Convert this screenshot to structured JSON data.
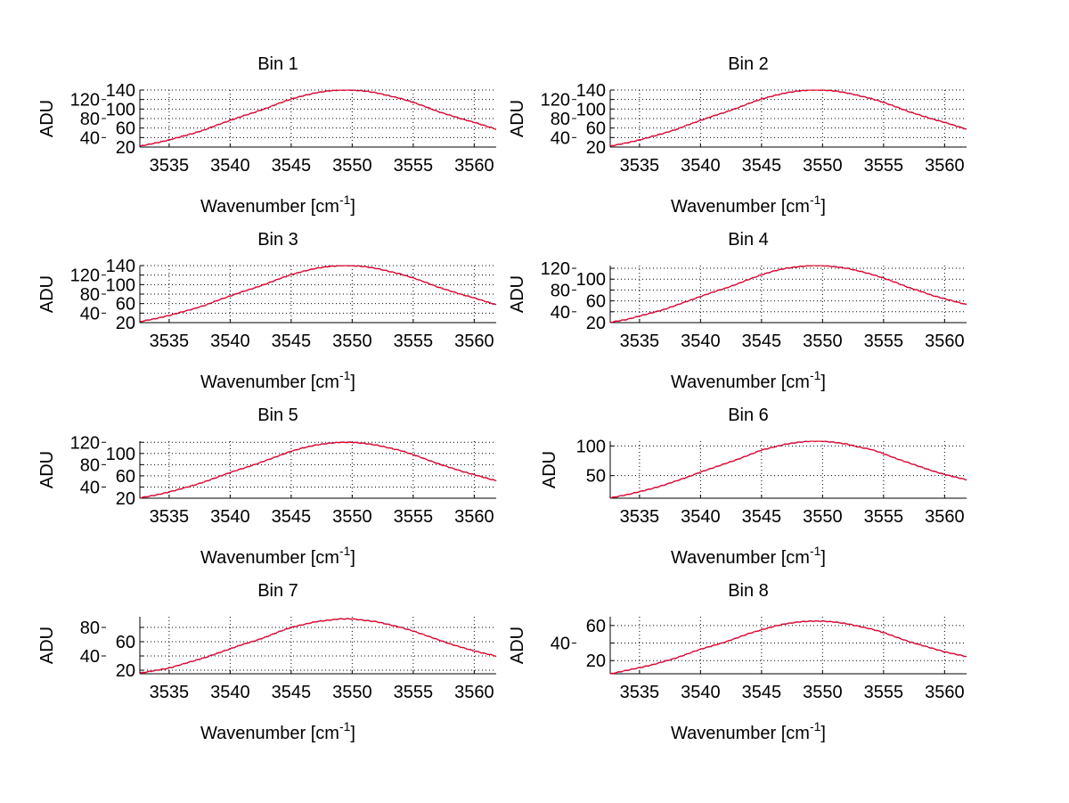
{
  "chart_data": [
    {
      "type": "line",
      "title": "Bin 1",
      "xlabel": "Wavenumber [cm",
      "xlabel_sup": "-1",
      "xlabel_end": "]",
      "ylabel": "ADU",
      "xlim": [
        3532.6,
        3561.8
      ],
      "ylim": [
        20,
        140
      ],
      "xticks": [
        3535,
        3540,
        3545,
        3550,
        3555,
        3560
      ],
      "yticks": [
        20,
        40,
        60,
        80,
        100,
        120,
        140
      ],
      "grid": true,
      "x": [
        3533,
        3534,
        3535,
        3536,
        3537,
        3538,
        3539,
        3540,
        3541,
        3542,
        3543,
        3544,
        3545,
        3546,
        3547,
        3548,
        3549,
        3550,
        3551,
        3552,
        3553,
        3554,
        3555,
        3556,
        3557,
        3558,
        3559,
        3560,
        3561
      ],
      "series": [
        {
          "name": "blue",
          "color": "#0000ff",
          "values": [
            24,
            29,
            35,
            42,
            49,
            57,
            67,
            76,
            85,
            93,
            102,
            112,
            121,
            128,
            134,
            138,
            140,
            140,
            138,
            134,
            128,
            122,
            114,
            105,
            95,
            87,
            79,
            72,
            64
          ]
        },
        {
          "name": "red",
          "color": "#ff0000",
          "values": [
            24,
            29,
            35,
            42,
            49,
            57,
            67,
            76,
            85,
            93,
            102,
            112,
            121,
            128,
            134,
            138,
            140,
            140,
            138,
            134,
            128,
            122,
            114,
            105,
            95,
            87,
            79,
            72,
            64
          ]
        }
      ]
    },
    {
      "type": "line",
      "title": "Bin 2",
      "xlabel": "Wavenumber [cm",
      "xlabel_sup": "-1",
      "xlabel_end": "]",
      "ylabel": "ADU",
      "xlim": [
        3532.6,
        3561.8
      ],
      "ylim": [
        20,
        140
      ],
      "xticks": [
        3535,
        3540,
        3545,
        3550,
        3555,
        3560
      ],
      "yticks": [
        20,
        40,
        60,
        80,
        100,
        120,
        140
      ],
      "grid": true,
      "x": [
        3533,
        3534,
        3535,
        3536,
        3537,
        3538,
        3539,
        3540,
        3541,
        3542,
        3543,
        3544,
        3545,
        3546,
        3547,
        3548,
        3549,
        3550,
        3551,
        3552,
        3553,
        3554,
        3555,
        3556,
        3557,
        3558,
        3559,
        3560,
        3561
      ],
      "series": [
        {
          "name": "blue",
          "color": "#0000ff",
          "values": [
            24,
            29,
            35,
            42,
            49,
            57,
            67,
            76,
            85,
            93,
            102,
            112,
            121,
            128,
            134,
            138,
            140,
            140,
            138,
            134,
            128,
            122,
            114,
            105,
            95,
            87,
            79,
            72,
            64
          ]
        },
        {
          "name": "red",
          "color": "#ff0000",
          "values": [
            24,
            29,
            35,
            42,
            49,
            57,
            67,
            76,
            85,
            93,
            102,
            112,
            121,
            128,
            134,
            138,
            140,
            140,
            138,
            134,
            128,
            122,
            114,
            105,
            95,
            87,
            79,
            72,
            64
          ]
        }
      ]
    },
    {
      "type": "line",
      "title": "Bin 3",
      "xlabel": "Wavenumber [cm",
      "xlabel_sup": "-1",
      "xlabel_end": "]",
      "ylabel": "ADU",
      "xlim": [
        3532.6,
        3561.8
      ],
      "ylim": [
        20,
        140
      ],
      "xticks": [
        3535,
        3540,
        3545,
        3550,
        3555,
        3560
      ],
      "yticks": [
        20,
        40,
        60,
        80,
        100,
        120,
        140
      ],
      "grid": true,
      "x": [
        3533,
        3534,
        3535,
        3536,
        3537,
        3538,
        3539,
        3540,
        3541,
        3542,
        3543,
        3544,
        3545,
        3546,
        3547,
        3548,
        3549,
        3550,
        3551,
        3552,
        3553,
        3554,
        3555,
        3556,
        3557,
        3558,
        3559,
        3560,
        3561
      ],
      "series": [
        {
          "name": "blue",
          "color": "#0000ff",
          "values": [
            24,
            29,
            35,
            42,
            49,
            57,
            67,
            76,
            85,
            93,
            102,
            112,
            121,
            128,
            134,
            138,
            140,
            140,
            138,
            134,
            128,
            122,
            114,
            105,
            95,
            87,
            79,
            72,
            64
          ]
        },
        {
          "name": "red",
          "color": "#ff0000",
          "values": [
            24,
            29,
            35,
            42,
            49,
            57,
            67,
            76,
            85,
            93,
            102,
            112,
            121,
            128,
            134,
            138,
            140,
            140,
            138,
            134,
            128,
            122,
            114,
            105,
            95,
            87,
            79,
            72,
            64
          ]
        }
      ]
    },
    {
      "type": "line",
      "title": "Bin 4",
      "xlabel": "Wavenumber [cm",
      "xlabel_sup": "-1",
      "xlabel_end": "]",
      "ylabel": "ADU",
      "xlim": [
        3532.6,
        3561.8
      ],
      "ylim": [
        20,
        125
      ],
      "xticks": [
        3535,
        3540,
        3545,
        3550,
        3555,
        3560
      ],
      "yticks": [
        20,
        40,
        60,
        80,
        100,
        120
      ],
      "grid": true,
      "x": [
        3533,
        3534,
        3535,
        3536,
        3537,
        3538,
        3539,
        3540,
        3541,
        3542,
        3543,
        3544,
        3545,
        3546,
        3547,
        3548,
        3549,
        3550,
        3551,
        3552,
        3553,
        3554,
        3555,
        3556,
        3557,
        3558,
        3559,
        3560,
        3561
      ],
      "series": [
        {
          "name": "blue",
          "color": "#0000ff",
          "values": [
            22,
            26,
            32,
            38,
            44,
            52,
            60,
            68,
            76,
            83,
            91,
            100,
            108,
            115,
            120,
            123,
            125,
            125,
            123,
            120,
            115,
            109,
            102,
            94,
            85,
            78,
            70,
            64,
            58
          ]
        },
        {
          "name": "red",
          "color": "#ff0000",
          "values": [
            22,
            26,
            32,
            38,
            44,
            52,
            60,
            68,
            76,
            83,
            91,
            100,
            108,
            115,
            120,
            123,
            125,
            125,
            123,
            120,
            115,
            109,
            102,
            94,
            85,
            78,
            70,
            64,
            58
          ]
        }
      ]
    },
    {
      "type": "line",
      "title": "Bin 5",
      "xlabel": "Wavenumber [cm",
      "xlabel_sup": "-1",
      "xlabel_end": "]",
      "ylabel": "ADU",
      "xlim": [
        3532.6,
        3561.8
      ],
      "ylim": [
        20,
        122
      ],
      "xticks": [
        3535,
        3540,
        3545,
        3550,
        3555,
        3560
      ],
      "yticks": [
        20,
        40,
        60,
        80,
        100,
        120
      ],
      "grid": true,
      "x": [
        3533,
        3534,
        3535,
        3536,
        3537,
        3538,
        3539,
        3540,
        3541,
        3542,
        3543,
        3544,
        3545,
        3546,
        3547,
        3548,
        3549,
        3550,
        3551,
        3552,
        3553,
        3554,
        3555,
        3556,
        3557,
        3558,
        3559,
        3560,
        3561
      ],
      "series": [
        {
          "name": "blue",
          "color": "#0000ff",
          "values": [
            22,
            26,
            31,
            37,
            43,
            50,
            58,
            66,
            73,
            80,
            88,
            96,
            104,
            110,
            115,
            118,
            120,
            120,
            118,
            115,
            110,
            105,
            98,
            90,
            82,
            75,
            68,
            62,
            56
          ]
        },
        {
          "name": "red",
          "color": "#ff0000",
          "values": [
            22,
            26,
            31,
            37,
            43,
            50,
            58,
            66,
            73,
            80,
            88,
            96,
            104,
            110,
            115,
            118,
            120,
            120,
            118,
            115,
            110,
            105,
            98,
            90,
            82,
            75,
            68,
            62,
            56
          ]
        }
      ]
    },
    {
      "type": "line",
      "title": "Bin 6",
      "xlabel": "Wavenumber [cm",
      "xlabel_sup": "-1",
      "xlabel_end": "]",
      "ylabel": "ADU",
      "xlim": [
        3532.6,
        3561.8
      ],
      "ylim": [
        12,
        108
      ],
      "xticks": [
        3535,
        3540,
        3545,
        3550,
        3555,
        3560
      ],
      "yticks": [
        50,
        100
      ],
      "grid": true,
      "x": [
        3533,
        3534,
        3535,
        3536,
        3537,
        3538,
        3539,
        3540,
        3541,
        3542,
        3543,
        3544,
        3545,
        3546,
        3547,
        3548,
        3549,
        3550,
        3551,
        3552,
        3553,
        3554,
        3555,
        3556,
        3557,
        3558,
        3559,
        3560,
        3561
      ],
      "series": [
        {
          "name": "blue",
          "color": "#0000ff",
          "values": [
            14,
            18,
            23,
            28,
            34,
            41,
            48,
            56,
            63,
            70,
            77,
            85,
            93,
            98,
            103,
            106,
            108,
            108,
            106,
            103,
            98,
            94,
            87,
            79,
            72,
            65,
            58,
            52,
            47
          ]
        },
        {
          "name": "red",
          "color": "#ff0000",
          "values": [
            14,
            18,
            23,
            28,
            34,
            41,
            48,
            56,
            63,
            70,
            77,
            85,
            93,
            98,
            103,
            106,
            108,
            108,
            106,
            103,
            98,
            94,
            87,
            79,
            72,
            65,
            58,
            52,
            47
          ]
        }
      ]
    },
    {
      "type": "line",
      "title": "Bin 7",
      "xlabel": "Wavenumber [cm",
      "xlabel_sup": "-1",
      "xlabel_end": "]",
      "ylabel": "ADU",
      "xlim": [
        3532.6,
        3561.8
      ],
      "ylim": [
        15,
        95
      ],
      "xticks": [
        3535,
        3540,
        3545,
        3550,
        3555,
        3560
      ],
      "yticks": [
        20,
        40,
        60,
        80
      ],
      "grid": true,
      "x": [
        3533,
        3534,
        3535,
        3536,
        3537,
        3538,
        3539,
        3540,
        3541,
        3542,
        3543,
        3544,
        3545,
        3546,
        3547,
        3548,
        3549,
        3550,
        3551,
        3552,
        3553,
        3554,
        3555,
        3556,
        3557,
        3558,
        3559,
        3560,
        3561
      ],
      "series": [
        {
          "name": "blue",
          "color": "#0000ff",
          "values": [
            17,
            20,
            23,
            28,
            33,
            38,
            44,
            50,
            56,
            61,
            67,
            74,
            80,
            84,
            88,
            90,
            92,
            92,
            90,
            88,
            84,
            80,
            75,
            69,
            63,
            57,
            52,
            47,
            43
          ]
        },
        {
          "name": "red",
          "color": "#ff0000",
          "values": [
            17,
            20,
            23,
            28,
            33,
            38,
            44,
            50,
            56,
            61,
            67,
            74,
            80,
            84,
            88,
            90,
            92,
            92,
            90,
            88,
            84,
            80,
            75,
            69,
            63,
            57,
            52,
            47,
            43
          ]
        }
      ]
    },
    {
      "type": "line",
      "title": "Bin 8",
      "xlabel": "Wavenumber [cm",
      "xlabel_sup": "-1",
      "xlabel_end": "]",
      "ylabel": "ADU",
      "xlim": [
        3532.6,
        3561.8
      ],
      "ylim": [
        5,
        70
      ],
      "xticks": [
        3535,
        3540,
        3545,
        3550,
        3555,
        3560
      ],
      "yticks": [
        20,
        40,
        60
      ],
      "grid": true,
      "x": [
        3533,
        3534,
        3535,
        3536,
        3537,
        3538,
        3539,
        3540,
        3541,
        3542,
        3543,
        3544,
        3545,
        3546,
        3547,
        3548,
        3549,
        3550,
        3551,
        3552,
        3553,
        3554,
        3555,
        3556,
        3557,
        3558,
        3559,
        3560,
        3561
      ],
      "series": [
        {
          "name": "blue",
          "color": "#0000ff",
          "values": [
            6,
            9,
            12,
            15,
            19,
            23,
            28,
            33,
            37,
            41,
            46,
            51,
            55,
            59,
            62,
            64,
            65,
            65,
            64,
            62,
            59,
            56,
            52,
            47,
            42,
            38,
            34,
            30,
            27
          ]
        },
        {
          "name": "red",
          "color": "#ff0000",
          "values": [
            6,
            9,
            12,
            15,
            19,
            23,
            28,
            33,
            37,
            41,
            46,
            51,
            55,
            59,
            62,
            64,
            65,
            65,
            64,
            62,
            59,
            56,
            52,
            47,
            42,
            38,
            34,
            30,
            27
          ]
        }
      ]
    }
  ]
}
